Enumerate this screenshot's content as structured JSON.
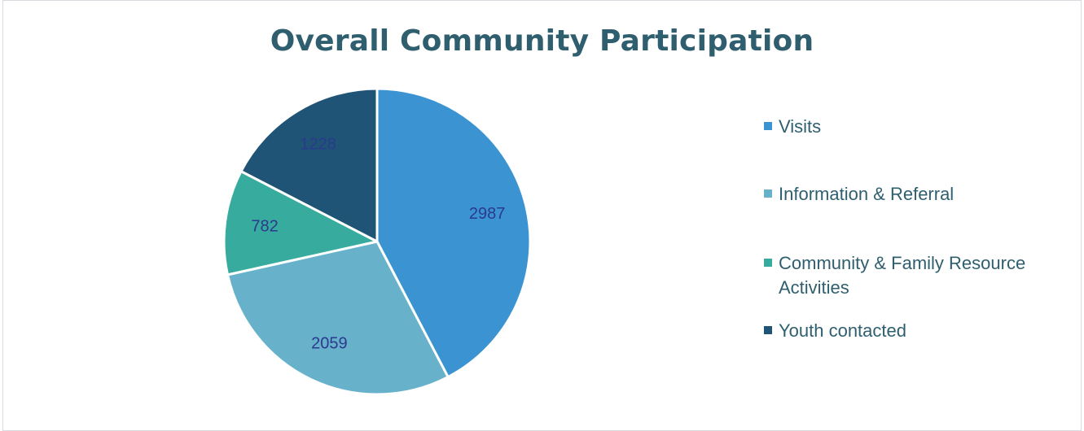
{
  "chart_data": {
    "type": "pie",
    "title": "Overall Community Participation",
    "categories": [
      "Visits",
      "Information & Referral",
      "Community & Family Resource Activities",
      "Youth contacted"
    ],
    "values": [
      2987,
      2059,
      782,
      1228
    ],
    "data_labels": [
      "2987",
      "2059",
      "782",
      "1228"
    ],
    "colors": [
      "#3b94d1",
      "#67b1cb",
      "#37ab9e",
      "#1f5476"
    ],
    "start_angle_deg": 0,
    "direction": "clockwise",
    "legend_position": "right"
  }
}
